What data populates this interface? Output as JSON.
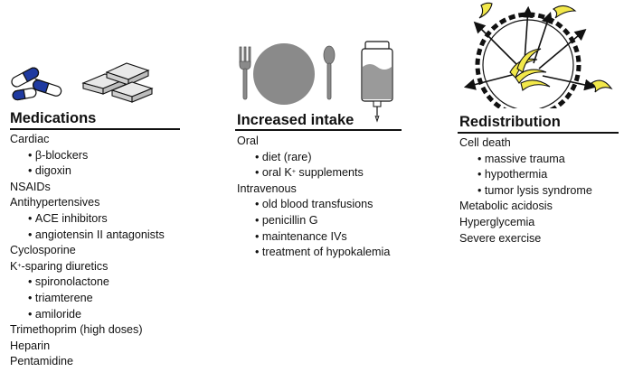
{
  "columns": [
    {
      "heading": "Medications",
      "items": [
        {
          "text": "Cardiac",
          "level": 0
        },
        {
          "text": "β-blockers",
          "level": 1
        },
        {
          "text": "digoxin",
          "level": 1
        },
        {
          "text": "NSAIDs",
          "level": 0
        },
        {
          "text": "Antihypertensives",
          "level": 0
        },
        {
          "text": "ACE inhibitors",
          "level": 1
        },
        {
          "text": "angiotensin II antagonists",
          "level": 1
        },
        {
          "text": "Cyclosporine",
          "level": 0
        },
        {
          "text": "K+-sparing diuretics",
          "level": 0
        },
        {
          "text": "spironolactone",
          "level": 1
        },
        {
          "text": "triamterene",
          "level": 1
        },
        {
          "text": "amiloride",
          "level": 1
        },
        {
          "text": "Trimethoprim (high doses)",
          "level": 0
        },
        {
          "text": "Heparin",
          "level": 0
        },
        {
          "text": "Pentamidine",
          "level": 0
        }
      ]
    },
    {
      "heading": "Increased intake",
      "items": [
        {
          "text": "Oral",
          "level": 0
        },
        {
          "text": "diet (rare)",
          "level": 1
        },
        {
          "text": "oral K+ supplements",
          "level": 1
        },
        {
          "text": "Intravenous",
          "level": 0
        },
        {
          "text": "old blood transfusions",
          "level": 1
        },
        {
          "text": "penicillin G",
          "level": 1
        },
        {
          "text": "maintenance IVs",
          "level": 1
        },
        {
          "text": "treatment of hypokalemia",
          "level": 1
        }
      ]
    },
    {
      "heading": "Redistribution",
      "items": [
        {
          "text": "Cell death",
          "level": 0
        },
        {
          "text": "massive trauma",
          "level": 1
        },
        {
          "text": "hypothermia",
          "level": 1
        },
        {
          "text": "tumor lysis syndrome",
          "level": 1
        },
        {
          "text": "Metabolic acidosis",
          "level": 0
        },
        {
          "text": "Hyperglycemia",
          "level": 0
        },
        {
          "text": "Severe exercise",
          "level": 0
        }
      ]
    }
  ],
  "icons": [
    "pill-capsules-icon",
    "tablets-icon",
    "fork-icon",
    "plate-icon",
    "spoon-icon",
    "iv-bag-icon",
    "cell-with-bananas-icon"
  ],
  "colors": {
    "text": "#111111",
    "capsule_blue": "#1f3aa0",
    "banana_yellow": "#f2e84a",
    "plate_gray": "#8a8a8a"
  }
}
